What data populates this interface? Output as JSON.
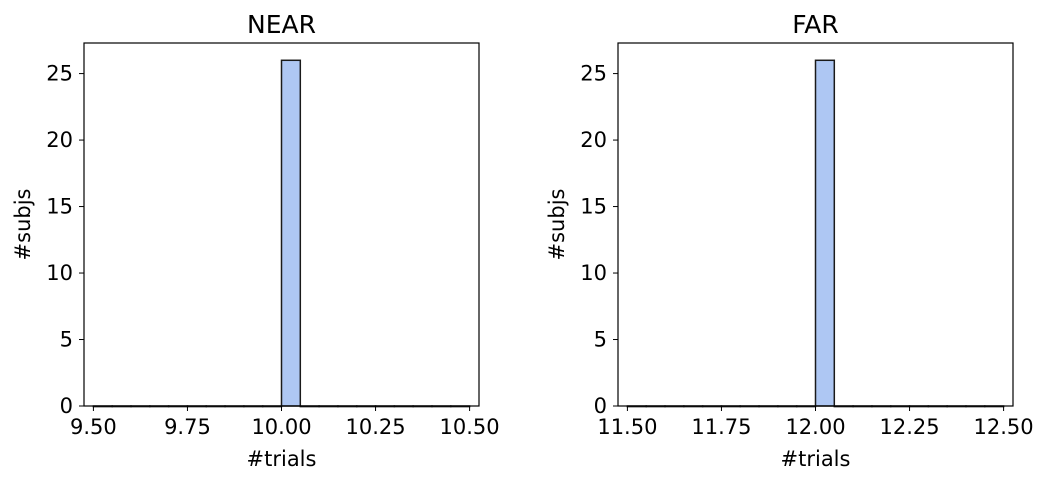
{
  "chart_data": [
    {
      "type": "bar",
      "title": "NEAR",
      "xlabel": "#trials",
      "ylabel": "#subjs",
      "xlim": [
        9.475,
        10.525
      ],
      "ylim": [
        0,
        27.3
      ],
      "xticks": [
        9.5,
        9.75,
        10.0,
        10.25,
        10.5
      ],
      "xtick_labels": [
        "9.50",
        "9.75",
        "10.00",
        "10.25",
        "10.50"
      ],
      "yticks": [
        0,
        5,
        10,
        15,
        20,
        25
      ],
      "ytick_labels": [
        "0",
        "5",
        "10",
        "15",
        "20",
        "25"
      ],
      "bin_range": [
        9.5,
        10.5
      ],
      "bins": 20,
      "counts": [
        0,
        0,
        0,
        0,
        0,
        0,
        0,
        0,
        0,
        0,
        26,
        0,
        0,
        0,
        0,
        0,
        0,
        0,
        0,
        0
      ],
      "bar_color": "#aec7f3",
      "edge_color": "#1a1a1a",
      "grid": false
    },
    {
      "type": "bar",
      "title": "FAR",
      "xlabel": "#trials",
      "ylabel": "#subjs",
      "xlim": [
        11.475,
        12.525
      ],
      "ylim": [
        0,
        27.3
      ],
      "xticks": [
        11.5,
        11.75,
        12.0,
        12.25,
        12.5
      ],
      "xtick_labels": [
        "11.50",
        "11.75",
        "12.00",
        "12.25",
        "12.50"
      ],
      "yticks": [
        0,
        5,
        10,
        15,
        20,
        25
      ],
      "ytick_labels": [
        "0",
        "5",
        "10",
        "15",
        "20",
        "25"
      ],
      "bin_range": [
        11.5,
        12.5
      ],
      "bins": 20,
      "counts": [
        0,
        0,
        0,
        0,
        0,
        0,
        0,
        0,
        0,
        0,
        26,
        0,
        0,
        0,
        0,
        0,
        0,
        0,
        0,
        0
      ],
      "bar_color": "#aec7f3",
      "edge_color": "#1a1a1a",
      "grid": false
    }
  ]
}
